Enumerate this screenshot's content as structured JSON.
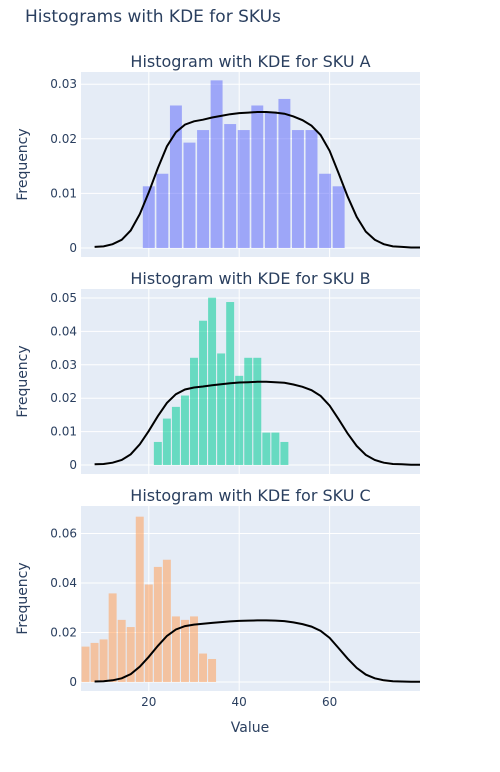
{
  "title": "Histograms with KDE for SKUs",
  "xlabel": "Value",
  "ylabel": "Frequency",
  "x_ticks": [
    20,
    40,
    60
  ],
  "xlim": [
    5,
    80
  ],
  "colors": {
    "plot_bg": "#e5ecf6",
    "grid": "#ffffff",
    "kde": "#000000",
    "text": "#2a3f5f"
  },
  "chart_data": [
    {
      "type": "bar",
      "title": "Histogram with KDE for SKU A",
      "color": "#636efa",
      "ylim": [
        0,
        0.0315
      ],
      "y_ticks": [
        0,
        0.01,
        0.02,
        0.03
      ],
      "y_tick_labels": [
        "0",
        "0.01",
        "0.02",
        "0.03"
      ],
      "bin_width": 3,
      "bins_x": [
        20,
        23,
        26,
        29,
        32,
        35,
        38,
        41,
        44,
        47,
        50,
        53,
        56,
        59,
        62,
        65
      ],
      "values": [
        0.0113,
        0.0136,
        0.0261,
        0.0193,
        0.0216,
        0.0307,
        0.0227,
        0.0216,
        0.0261,
        0.025,
        0.0273,
        0.0216,
        0.0216,
        0.0136,
        0.0113
      ],
      "kde": {
        "x": [
          8,
          10,
          12,
          14,
          16,
          18,
          20,
          22,
          24,
          26,
          28,
          30,
          32,
          34,
          36,
          38,
          40,
          42,
          44,
          46,
          48,
          50,
          52,
          54,
          56,
          58,
          60,
          62,
          64,
          66,
          68,
          70,
          72,
          74,
          76,
          78,
          80
        ],
        "y": [
          0.0002,
          0.0003,
          0.0007,
          0.0015,
          0.0032,
          0.0062,
          0.0102,
          0.0146,
          0.0186,
          0.0212,
          0.0226,
          0.0232,
          0.0235,
          0.0239,
          0.0242,
          0.0245,
          0.0247,
          0.0248,
          0.0249,
          0.0249,
          0.0248,
          0.0246,
          0.0241,
          0.0234,
          0.0224,
          0.0207,
          0.0178,
          0.0137,
          0.0094,
          0.0057,
          0.003,
          0.0015,
          0.0007,
          0.0003,
          0.0002,
          0.0001,
          0.0001
        ]
      }
    },
    {
      "type": "bar",
      "title": "Histogram with KDE for SKU B",
      "color": "#00cc96",
      "ylim": [
        0,
        0.0515
      ],
      "y_ticks": [
        0,
        0.01,
        0.02,
        0.03,
        0.04,
        0.05
      ],
      "y_tick_labels": [
        "0",
        "0.01",
        "0.02",
        "0.03",
        "0.04",
        "0.05"
      ],
      "bin_width": 2,
      "bins_x": [
        22,
        24,
        26,
        28,
        30,
        32,
        34,
        36,
        38,
        40,
        42,
        44,
        46,
        48,
        50,
        52,
        54,
        56,
        58,
        60
      ],
      "values": [
        0.0069,
        0.0139,
        0.0174,
        0.0208,
        0.0321,
        0.0432,
        0.0501,
        0.0334,
        0.0488,
        0.0267,
        0.0321,
        0.0321,
        0.0097,
        0.0097,
        0.0069
      ],
      "kde": {
        "x": [
          8,
          10,
          12,
          14,
          16,
          18,
          20,
          22,
          24,
          26,
          28,
          30,
          32,
          34,
          36,
          38,
          40,
          42,
          44,
          46,
          48,
          50,
          52,
          54,
          56,
          58,
          60,
          62,
          64,
          66,
          68,
          70,
          72,
          74,
          76,
          78,
          80
        ],
        "y": [
          0.0002,
          0.0003,
          0.0007,
          0.0015,
          0.0032,
          0.0062,
          0.0102,
          0.0146,
          0.0186,
          0.0212,
          0.0226,
          0.0232,
          0.0235,
          0.0239,
          0.0242,
          0.0245,
          0.0247,
          0.0248,
          0.0249,
          0.0249,
          0.0248,
          0.0246,
          0.0241,
          0.0234,
          0.0224,
          0.0207,
          0.0178,
          0.0137,
          0.0094,
          0.0057,
          0.003,
          0.0015,
          0.0007,
          0.0003,
          0.0002,
          0.0001,
          0.0001
        ]
      }
    },
    {
      "type": "bar",
      "title": "Histogram with KDE for SKU C",
      "color": "#ffa15a",
      "ylim": [
        0,
        0.0695
      ],
      "y_ticks": [
        0,
        0.02,
        0.04,
        0.06
      ],
      "y_tick_labels": [
        "0",
        "0.02",
        "0.04",
        "0.06"
      ],
      "bin_width": 2,
      "bins_x": [
        6,
        8,
        10,
        12,
        14,
        16,
        18,
        20,
        22,
        24,
        26,
        28,
        30,
        32,
        34,
        36,
        38,
        40
      ],
      "values": [
        0.0143,
        0.0158,
        0.0172,
        0.0358,
        0.0251,
        0.0222,
        0.0668,
        0.0394,
        0.0465,
        0.0494,
        0.0265,
        0.0251,
        0.0265,
        0.0115,
        0.0093
      ],
      "kde": {
        "x": [
          8,
          10,
          12,
          14,
          16,
          18,
          20,
          22,
          24,
          26,
          28,
          30,
          32,
          34,
          36,
          38,
          40,
          42,
          44,
          46,
          48,
          50,
          52,
          54,
          56,
          58,
          60,
          62,
          64,
          66,
          68,
          70,
          72,
          74,
          76,
          78,
          80
        ],
        "y": [
          0.0002,
          0.0003,
          0.0007,
          0.0015,
          0.0032,
          0.0062,
          0.0102,
          0.0146,
          0.0186,
          0.0212,
          0.0226,
          0.0232,
          0.0235,
          0.0239,
          0.0242,
          0.0245,
          0.0247,
          0.0248,
          0.0249,
          0.0249,
          0.0248,
          0.0246,
          0.0241,
          0.0234,
          0.0224,
          0.0207,
          0.0178,
          0.0137,
          0.0094,
          0.0057,
          0.003,
          0.0015,
          0.0007,
          0.0003,
          0.0002,
          0.0001,
          0.0001
        ]
      }
    }
  ]
}
